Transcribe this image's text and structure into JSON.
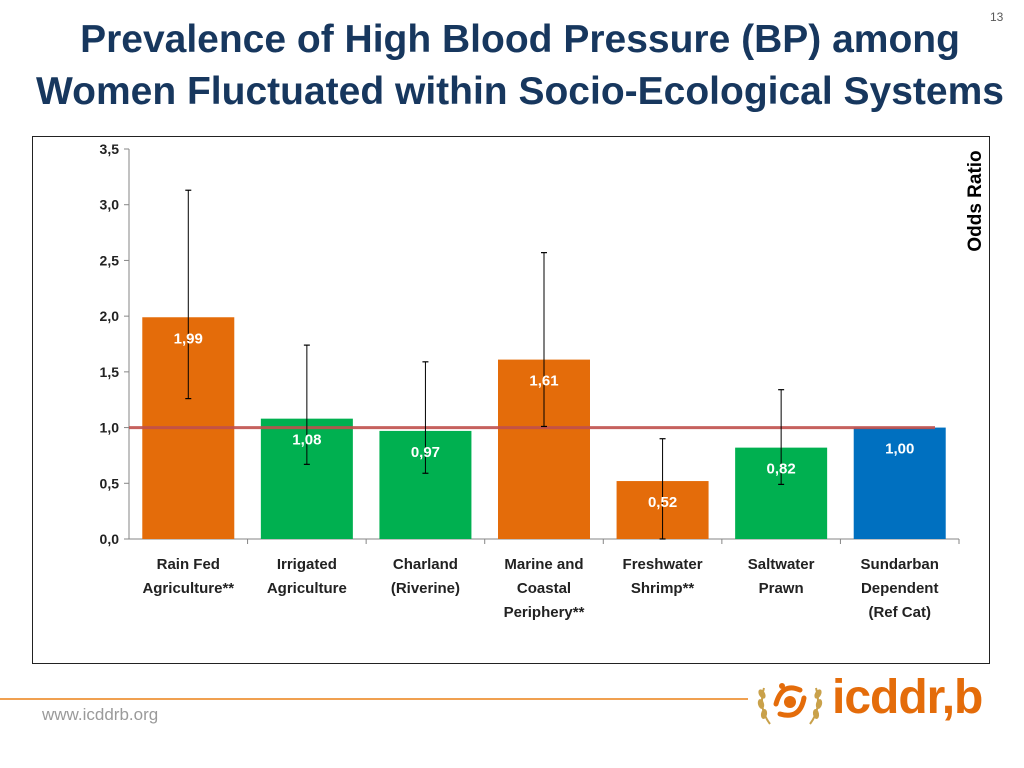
{
  "slide": {
    "title_line1": "Prevalence of High Blood Pressure (BP) among",
    "title_line2": "Women Fluctuated within Socio-Ecological Systems",
    "page_number": "13",
    "footer_url": "www.icddrb.org",
    "logo_text": "icddr,b"
  },
  "chart_data": {
    "type": "bar",
    "title": "",
    "xlabel": "",
    "ylabel": "Odds Ratio",
    "ylim": [
      0,
      3.5
    ],
    "yticks": [
      "0,0",
      "0,5",
      "1,0",
      "1,5",
      "2,0",
      "2,5",
      "3,0",
      "3,5"
    ],
    "ytick_values": [
      0,
      0.5,
      1.0,
      1.5,
      2.0,
      2.5,
      3.0,
      3.5
    ],
    "reference_line": 1.0,
    "reference_line_color": "#c0504d",
    "grid": false,
    "categories": [
      [
        "Rain Fed",
        "Agriculture**"
      ],
      [
        "Irrigated",
        "Agriculture"
      ],
      [
        "Charland",
        "(Riverine)"
      ],
      [
        "Marine and",
        "Coastal",
        "Periphery**"
      ],
      [
        "Freshwater",
        "Shrimp**"
      ],
      [
        "Saltwater",
        "Prawn"
      ],
      [
        "Sundarban",
        "Dependent",
        "(Ref Cat)"
      ]
    ],
    "values": [
      1.99,
      1.08,
      0.97,
      1.61,
      0.52,
      0.82,
      1.0
    ],
    "value_labels": [
      "1,99",
      "1,08",
      "0,97",
      "1,61",
      "0,52",
      "0,82",
      "1,00"
    ],
    "ci_lower": [
      1.26,
      0.67,
      0.59,
      1.01,
      0.0,
      0.49,
      null
    ],
    "ci_upper": [
      3.13,
      1.74,
      1.59,
      2.57,
      0.9,
      1.34,
      null
    ],
    "colors": [
      "#e46c0a",
      "#00b050",
      "#00b050",
      "#e46c0a",
      "#e46c0a",
      "#00b050",
      "#0070c0"
    ]
  }
}
